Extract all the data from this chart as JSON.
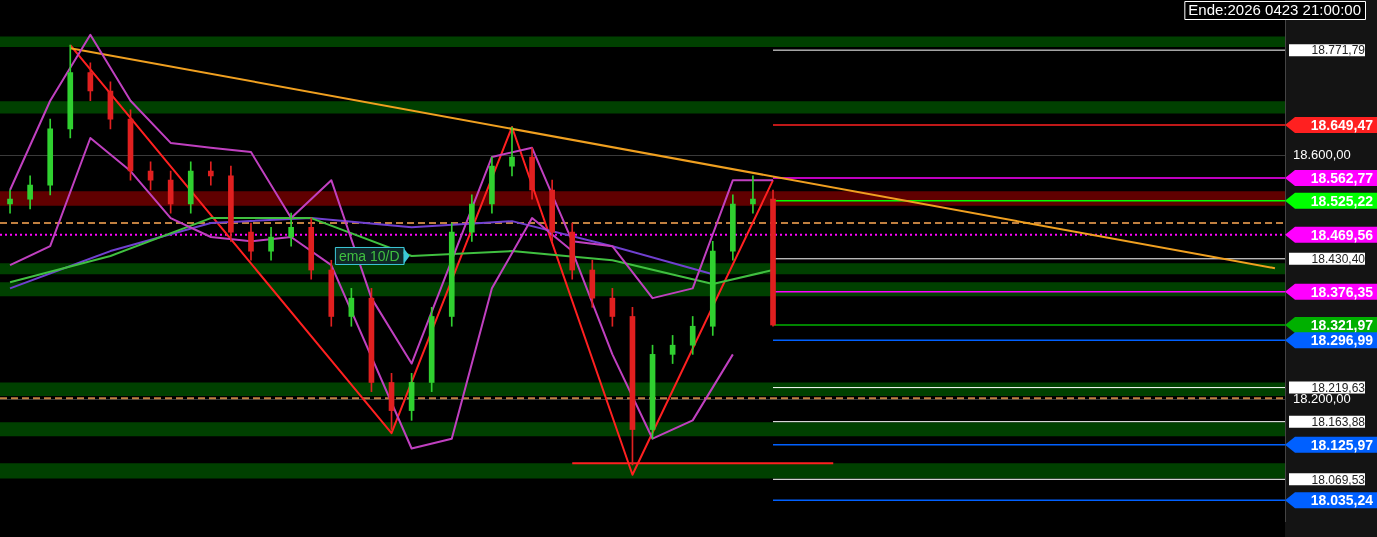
{
  "chart_data": {
    "type": "candlestick",
    "categories": [
      null,
      null,
      null,
      null,
      null,
      null,
      null,
      null,
      null,
      null,
      null,
      null,
      null,
      null,
      null,
      null,
      null,
      null,
      null,
      null,
      null,
      null,
      null,
      null,
      null,
      null,
      null,
      null,
      null,
      null,
      null,
      null,
      null,
      null,
      null,
      null,
      null,
      null,
      null,
      null,
      null,
      null,
      null,
      null,
      null,
      null,
      null,
      null,
      null,
      null,
      null,
      null,
      null,
      null,
      null,
      null,
      null,
      null,
      null,
      null,
      null,
      null,
      null,
      null
    ],
    "ohlc": [
      [
        18520,
        18543,
        18505,
        18528
      ],
      [
        18528,
        18566,
        18512,
        18551
      ],
      [
        18551,
        18659,
        18535,
        18643
      ],
      [
        18643,
        18780,
        18628,
        18735
      ],
      [
        18735,
        18751,
        18689,
        18705
      ],
      [
        18705,
        18720,
        18643,
        18659
      ],
      [
        18659,
        18674,
        18559,
        18574
      ],
      [
        18574,
        18589,
        18543,
        18559
      ],
      [
        18559,
        18574,
        18505,
        18520
      ],
      [
        18520,
        18589,
        18505,
        18574
      ],
      [
        18574,
        18589,
        18551,
        18566
      ],
      [
        18566,
        18582,
        18459,
        18474
      ],
      [
        18474,
        18489,
        18428,
        18443
      ],
      [
        18443,
        18482,
        18428,
        18466
      ],
      [
        18466,
        18505,
        18451,
        18482
      ],
      [
        18482,
        18497,
        18397,
        18412
      ],
      [
        18412,
        18428,
        18320,
        18336
      ],
      [
        18336,
        18382,
        18320,
        18366
      ],
      [
        18366,
        18382,
        18213,
        18228
      ],
      [
        18228,
        18243,
        18151,
        18182
      ],
      [
        18182,
        18243,
        18166,
        18228
      ],
      [
        18228,
        18351,
        18213,
        18336
      ],
      [
        18336,
        18489,
        18320,
        18474
      ],
      [
        18474,
        18535,
        18459,
        18520
      ],
      [
        18520,
        18597,
        18505,
        18582
      ],
      [
        18582,
        18646,
        18566,
        18597
      ],
      [
        18597,
        18612,
        18528,
        18543
      ],
      [
        18543,
        18559,
        18459,
        18474
      ],
      [
        18474,
        18489,
        18397,
        18412
      ],
      [
        18412,
        18428,
        18351,
        18366
      ],
      [
        18366,
        18382,
        18320,
        18336
      ],
      [
        18336,
        18351,
        18093,
        18151
      ],
      [
        18151,
        18289,
        18136,
        18274
      ],
      [
        18274,
        18305,
        18259,
        18289
      ],
      [
        18289,
        18336,
        18274,
        18320
      ],
      [
        18320,
        18459,
        18305,
        18443
      ],
      [
        18443,
        18535,
        18428,
        18520
      ],
      [
        18520,
        18566,
        18505,
        18528
      ],
      [
        18528,
        18543,
        18320,
        18322
      ],
      null,
      null,
      null,
      null,
      null,
      null,
      null,
      null,
      null,
      null,
      null,
      null,
      null,
      null,
      null,
      null,
      null,
      null,
      null,
      null,
      null,
      null,
      null,
      null,
      null
    ],
    "colors": [
      "#30d030",
      "#30d030",
      "#30d030",
      "#30d030",
      "#e02020",
      "#e02020",
      "#e02020",
      "#e02020",
      "#e02020",
      "#30d030",
      "#e02020",
      "#e02020",
      "#e02020",
      "#30d030",
      "#30d030",
      "#e02020",
      "#e02020",
      "#30d030",
      "#e02020",
      "#e02020",
      "#30d030",
      "#30d030",
      "#30d030",
      "#30d030",
      "#30d030",
      "#30d030",
      "#e02020",
      "#e02020",
      "#e02020",
      "#e02020",
      "#e02020",
      "#e02020",
      "#30d030",
      "#30d030",
      "#30d030",
      "#30d030",
      "#30d030",
      "#30d030",
      "#e02020",
      null,
      null,
      null,
      null,
      null,
      null,
      null,
      null,
      null,
      null,
      null,
      null,
      null,
      null,
      null,
      null,
      null,
      null,
      null,
      null,
      null,
      null,
      null,
      null,
      null
    ],
    "series": [
      {
        "type": "line",
        "color": "#c040c0",
        "values": [
          18543,
          null,
          18689,
          null,
          18797,
          null,
          18689,
          null,
          18620,
          null,
          18612,
          null,
          18605,
          null,
          18497,
          null,
          18559,
          null,
          18366,
          null,
          18259,
          null,
          null,
          null,
          18597,
          null,
          18612,
          null,
          18459,
          null,
          18451,
          null,
          18366,
          null,
          18382,
          null,
          18559,
          null,
          18559,
          null,
          null,
          null,
          null,
          null,
          null,
          null,
          null,
          null,
          null,
          null,
          null,
          null,
          null,
          null,
          null,
          null,
          null,
          null,
          null,
          null,
          null,
          null,
          null,
          null
        ]
      },
      {
        "type": "line",
        "color": "#c040c0",
        "values": [
          18420,
          null,
          18451,
          null,
          18628,
          null,
          18574,
          null,
          18497,
          null,
          18466,
          null,
          18459,
          null,
          18466,
          null,
          18420,
          null,
          null,
          null,
          18120,
          null,
          18136,
          null,
          18382,
          null,
          18497,
          null,
          18443,
          null,
          18274,
          null,
          18136,
          null,
          18166,
          null,
          18274,
          null,
          null,
          null,
          null,
          null,
          null,
          null,
          null,
          null,
          null,
          null,
          null,
          null,
          null,
          null,
          null,
          null,
          null,
          null,
          null,
          null,
          null,
          null,
          null,
          null,
          null,
          null
        ]
      },
      {
        "type": "line",
        "name": "ema 10/D",
        "color": "#40c040",
        "values": [
          18392,
          null,
          null,
          null,
          null,
          18435,
          null,
          null,
          null,
          null,
          18497,
          null,
          null,
          null,
          null,
          18497,
          null,
          null,
          null,
          null,
          18435,
          null,
          null,
          null,
          null,
          18443,
          null,
          null,
          null,
          null,
          18428,
          null,
          null,
          null,
          null,
          18389,
          null,
          null,
          18412,
          null,
          null,
          null,
          null,
          null,
          null,
          null,
          null,
          null,
          null,
          null,
          null,
          null,
          null,
          null,
          null,
          null,
          null,
          null,
          null,
          null,
          null,
          null,
          null,
          null
        ]
      },
      {
        "type": "line",
        "color": "#7040d0",
        "values": [
          18382,
          null,
          null,
          null,
          null,
          18443,
          null,
          null,
          null,
          null,
          18489,
          null,
          null,
          null,
          null,
          18497,
          null,
          null,
          null,
          null,
          18482,
          null,
          null,
          null,
          null,
          18492,
          null,
          null,
          null,
          null,
          18451,
          null,
          null,
          null,
          null,
          18405,
          null,
          null,
          null,
          null,
          null,
          null,
          null,
          null,
          null,
          null,
          null,
          null,
          null,
          null,
          null,
          null,
          null,
          null,
          null,
          null,
          null,
          null,
          null,
          null,
          null,
          null,
          null,
          null
        ]
      },
      {
        "type": "line",
        "color": "#f0a020",
        "values": [
          null,
          null,
          null,
          18775,
          null,
          null,
          null,
          null,
          null,
          null,
          null,
          null,
          null,
          null,
          null,
          null,
          null,
          null,
          null,
          null,
          null,
          null,
          null,
          null,
          null,
          null,
          null,
          null,
          null,
          null,
          null,
          null,
          null,
          null,
          null,
          null,
          null,
          null,
          null,
          null,
          null,
          null,
          null,
          null,
          null,
          null,
          null,
          null,
          null,
          null,
          null,
          null,
          null,
          null,
          null,
          null,
          null,
          null,
          null,
          null,
          null,
          null,
          null,
          18415
        ]
      },
      {
        "type": "line",
        "color": "#ff2020",
        "values": [
          null,
          null,
          null,
          18780,
          null,
          null,
          null,
          null,
          null,
          null,
          null,
          null,
          null,
          null,
          null,
          null,
          null,
          null,
          null,
          18145,
          null,
          null,
          null,
          null,
          null,
          18646,
          null,
          null,
          null,
          null,
          null,
          18077,
          null,
          null,
          null,
          null,
          null,
          null,
          18559,
          null,
          null,
          null,
          null,
          null,
          null,
          null,
          null,
          null,
          null,
          null,
          null,
          null,
          null,
          null,
          null,
          null,
          null,
          null,
          null,
          null,
          null,
          null,
          null,
          null
        ]
      },
      {
        "type": "line",
        "color": "#ff2020",
        "values": [
          null,
          null,
          null,
          null,
          null,
          null,
          null,
          null,
          null,
          null,
          null,
          null,
          null,
          null,
          null,
          null,
          null,
          null,
          null,
          null,
          null,
          null,
          null,
          null,
          null,
          null,
          null,
          null,
          18096,
          null,
          null,
          null,
          null,
          null,
          null,
          null,
          null,
          null,
          null,
          null,
          null,
          18096,
          null,
          null,
          null,
          null,
          null,
          null,
          null,
          null,
          null,
          null,
          null,
          null,
          null,
          null,
          null,
          null,
          null,
          null,
          null,
          null,
          null,
          null
        ]
      }
    ],
    "ylim": [
      18001,
      18828
    ],
    "yticks": [
      {
        "value": 18600,
        "label": "18.600,00"
      },
      {
        "value": 18200,
        "label": "18.200,00"
      }
    ],
    "tick_labels": "y",
    "grid": "y",
    "bands": [
      {
        "axis": "y",
        "from": 18777,
        "to": 18794,
        "color": "#004000"
      },
      {
        "axis": "y",
        "from": 18668,
        "to": 18688,
        "color": "#004000"
      },
      {
        "axis": "y",
        "from": 18517,
        "to": 18541,
        "color": "#600000"
      },
      {
        "axis": "y",
        "from": 18405,
        "to": 18423,
        "color": "#004000"
      },
      {
        "axis": "y",
        "from": 18369,
        "to": 18392,
        "color": "#004000"
      },
      {
        "axis": "y",
        "from": 18206,
        "to": 18228,
        "color": "#004000"
      },
      {
        "axis": "y",
        "from": 18140,
        "to": 18163,
        "color": "#004000"
      },
      {
        "axis": "y",
        "from": 18071,
        "to": 18096,
        "color": "#004000"
      }
    ],
    "ref_lines": [
      {
        "axis": "y",
        "value": 18649.47,
        "label": "18.649,47",
        "color": "#ff2020"
      },
      {
        "axis": "y",
        "value": 18562.77,
        "label": "18.562,77",
        "color": "#ff00ff"
      },
      {
        "axis": "y",
        "value": 18525.22,
        "label": "18.525,22",
        "color": "#00ff00"
      },
      {
        "axis": "y",
        "value": 18469.56,
        "label": "18.469,56",
        "color": "#ff00ff",
        "line_style": "dotted"
      },
      {
        "axis": "y",
        "value": 18376.35,
        "label": "18.376,35",
        "color": "#ff00ff"
      },
      {
        "axis": "y",
        "value": 18321.97,
        "label": "18.321,97",
        "color": "#00b000"
      },
      {
        "axis": "y",
        "value": 18296.99,
        "label": "18.296,99",
        "color": "#0060ff"
      },
      {
        "axis": "y",
        "value": 18125.97,
        "label": "18.125,97",
        "color": "#0060ff"
      },
      {
        "axis": "y",
        "value": 18035.24,
        "label": "18.035,24",
        "color": "#0060ff"
      },
      {
        "axis": "y",
        "value": 18771.79,
        "label": "18.771,79",
        "color": "#ffffff"
      },
      {
        "axis": "y",
        "value": 18430.4,
        "label": "18.430,40",
        "color": "#ffffff"
      },
      {
        "axis": "y",
        "value": 18219.63,
        "label": "18.219,63",
        "color": "#ffffff"
      },
      {
        "axis": "y",
        "value": 18163.88,
        "label": "18.163,88",
        "color": "#ffffff"
      },
      {
        "axis": "y",
        "value": 18069.53,
        "label": "18.069,53",
        "color": "#ffffff"
      },
      {
        "axis": "y",
        "value": 18489,
        "color": "#c08040",
        "line_style": "dashed"
      },
      {
        "axis": "y",
        "value": 18202,
        "color": "#c08040",
        "line_style": "dashed"
      }
    ],
    "annotations": [
      "Ende:2026 0423 21:00:00"
    ]
  }
}
